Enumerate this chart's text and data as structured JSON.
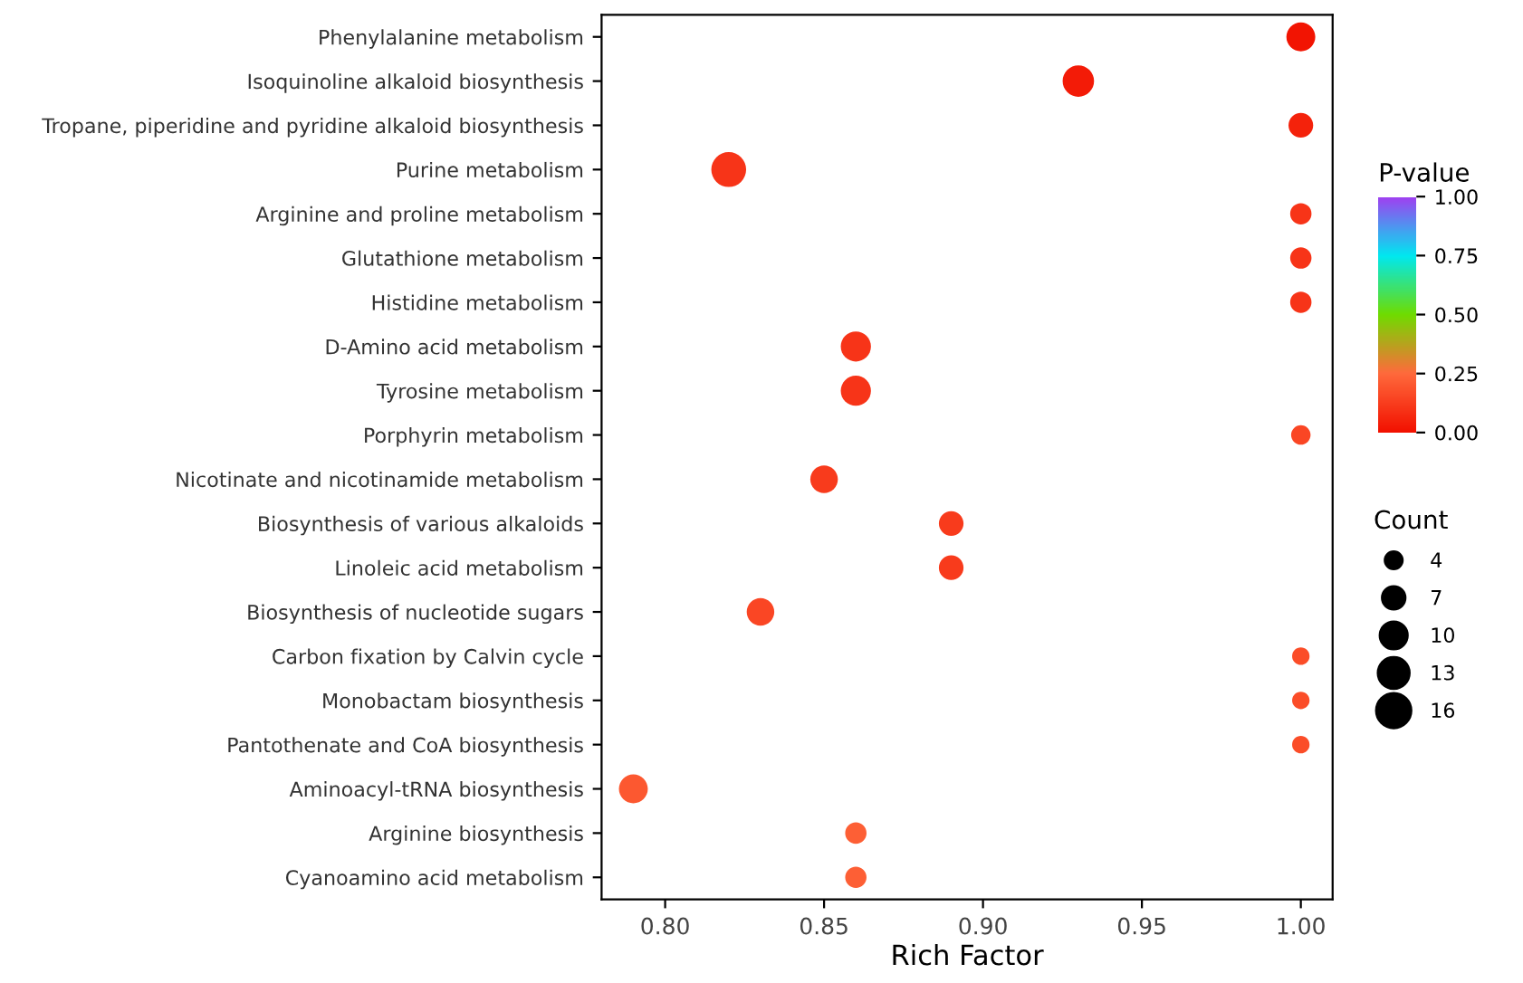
{
  "chart_data": {
    "type": "bubble",
    "orientation": "horizontal",
    "xlabel": "Rich Factor",
    "clabel": "P-value",
    "legend_title": "Count",
    "grid": false,
    "categories": [
      "Phenylalanine metabolism",
      "Isoquinoline alkaloid biosynthesis",
      "Tropane, piperidine and pyridine alkaloid biosynthesis",
      "Purine metabolism",
      "Arginine and proline metabolism",
      "Glutathione metabolism",
      "Histidine metabolism",
      "D-Amino acid metabolism",
      "Tyrosine metabolism",
      "Porphyrin metabolism",
      "Nicotinate and nicotinamide metabolism",
      "Biosynthesis of various alkaloids",
      "Linoleic acid metabolism",
      "Biosynthesis of nucleotide sugars",
      "Carbon fixation by Calvin cycle",
      "Monobactam biosynthesis",
      "Pantothenate and CoA biosynthesis",
      "Aminoacyl-tRNA biosynthesis",
      "Arginine biosynthesis",
      "Cyanoamino acid metabolism"
    ],
    "values": [
      1.0,
      0.93,
      1.0,
      0.82,
      1.0,
      1.0,
      1.0,
      0.86,
      0.86,
      1.0,
      0.85,
      0.89,
      0.89,
      0.83,
      1.0,
      1.0,
      1.0,
      0.79,
      0.86,
      0.86
    ],
    "sizes": [
      11,
      13,
      8,
      16,
      6,
      6,
      6,
      12,
      12,
      5,
      10,
      8,
      8,
      10,
      4,
      4,
      4,
      11,
      6,
      6
    ],
    "size_legend": [
      4,
      7,
      10,
      13,
      16
    ],
    "cvalues": [
      0.01,
      0.03,
      0.05,
      0.1,
      0.1,
      0.1,
      0.1,
      0.1,
      0.1,
      0.15,
      0.12,
      0.12,
      0.12,
      0.15,
      0.17,
      0.17,
      0.17,
      0.2,
      0.22,
      0.22
    ],
    "clim": [
      0,
      1
    ],
    "cticks": [
      {
        "value": 0,
        "label": "0.00"
      },
      {
        "value": 0.25,
        "label": "0.25"
      },
      {
        "value": 0.5,
        "label": "0.50"
      },
      {
        "value": 0.75,
        "label": "0.75"
      },
      {
        "value": 1,
        "label": "1.00"
      }
    ],
    "xlim": [
      0.78,
      1.01
    ],
    "xticks": [
      {
        "value": 0.8,
        "label": "0.80"
      },
      {
        "value": 0.85,
        "label": "0.85"
      },
      {
        "value": 0.9,
        "label": "0.90"
      },
      {
        "value": 0.95,
        "label": "0.95"
      },
      {
        "value": 1.0,
        "label": "1.00"
      }
    ]
  }
}
